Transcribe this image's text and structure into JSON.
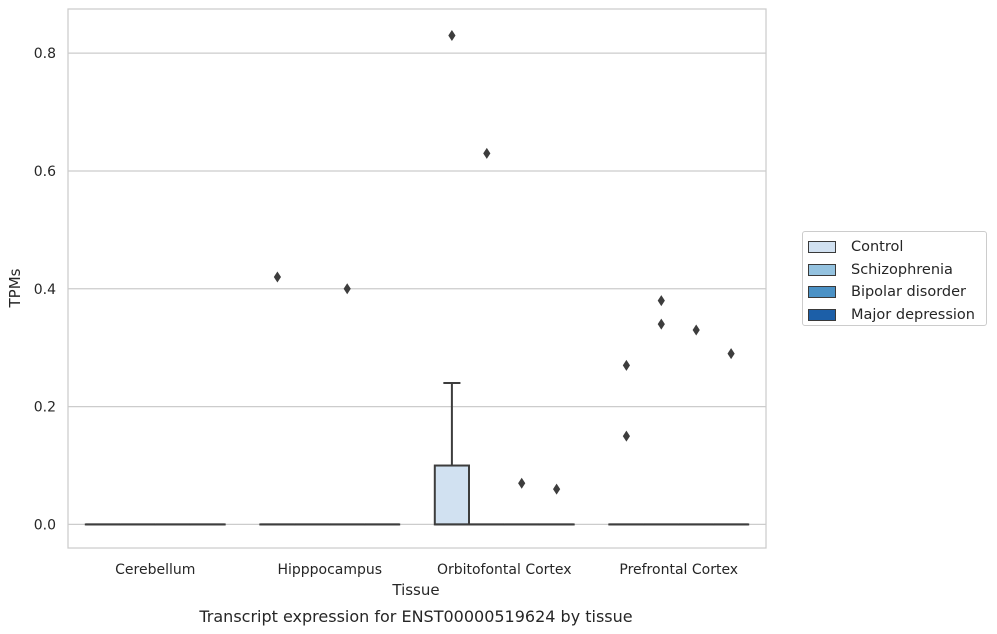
{
  "chart_data": {
    "type": "box",
    "caption": "Transcript expression for ENST00000519624 by tissue",
    "xlabel": "Tissue",
    "ylabel": "TPMs",
    "ylim": [
      -0.04,
      0.875
    ],
    "yticks": [
      {
        "value": 0.0,
        "label": "0.0"
      },
      {
        "value": 0.2,
        "label": "0.2"
      },
      {
        "value": 0.4,
        "label": "0.4"
      },
      {
        "value": 0.6,
        "label": "0.6"
      },
      {
        "value": 0.8,
        "label": "0.8"
      }
    ],
    "grid": "horizontal",
    "legend_position": "outside-right",
    "categories": [
      "Cerebellum",
      "Hipppocampus",
      "Orbitofontal Cortex",
      "Prefrontal Cortex"
    ],
    "series": [
      {
        "name": "Control",
        "color": "#d1e1f1"
      },
      {
        "name": "Schizophrenia",
        "color": "#94c2df"
      },
      {
        "name": "Bipolar disorder",
        "color": "#4a91c5"
      },
      {
        "name": "Major depression",
        "color": "#1c5fa8"
      }
    ],
    "boxes": [
      {
        "category": 0,
        "series": 0,
        "q1": 0,
        "median": 0,
        "q3": 0,
        "whisker_low": 0,
        "whisker_high": 0,
        "outliers": []
      },
      {
        "category": 0,
        "series": 1,
        "q1": 0,
        "median": 0,
        "q3": 0,
        "whisker_low": 0,
        "whisker_high": 0,
        "outliers": []
      },
      {
        "category": 0,
        "series": 2,
        "q1": 0,
        "median": 0,
        "q3": 0,
        "whisker_low": 0,
        "whisker_high": 0,
        "outliers": []
      },
      {
        "category": 0,
        "series": 3,
        "q1": 0,
        "median": 0,
        "q3": 0,
        "whisker_low": 0,
        "whisker_high": 0,
        "outliers": []
      },
      {
        "category": 1,
        "series": 0,
        "q1": 0,
        "median": 0,
        "q3": 0,
        "whisker_low": 0,
        "whisker_high": 0,
        "outliers": [
          0.42
        ]
      },
      {
        "category": 1,
        "series": 1,
        "q1": 0,
        "median": 0,
        "q3": 0,
        "whisker_low": 0,
        "whisker_high": 0,
        "outliers": []
      },
      {
        "category": 1,
        "series": 2,
        "q1": 0,
        "median": 0,
        "q3": 0,
        "whisker_low": 0,
        "whisker_high": 0,
        "outliers": [
          0.4
        ]
      },
      {
        "category": 1,
        "series": 3,
        "q1": 0,
        "median": 0,
        "q3": 0,
        "whisker_low": 0,
        "whisker_high": 0,
        "outliers": []
      },
      {
        "category": 2,
        "series": 0,
        "q1": 0,
        "median": 0,
        "q3": 0.1,
        "whisker_low": 0,
        "whisker_high": 0.24,
        "outliers": [
          0.83
        ]
      },
      {
        "category": 2,
        "series": 1,
        "q1": 0,
        "median": 0,
        "q3": 0,
        "whisker_low": 0,
        "whisker_high": 0,
        "outliers": [
          0.63
        ]
      },
      {
        "category": 2,
        "series": 2,
        "q1": 0,
        "median": 0,
        "q3": 0,
        "whisker_low": 0,
        "whisker_high": 0,
        "outliers": [
          0.07
        ]
      },
      {
        "category": 2,
        "series": 3,
        "q1": 0,
        "median": 0,
        "q3": 0,
        "whisker_low": 0,
        "whisker_high": 0,
        "outliers": [
          0.06
        ]
      },
      {
        "category": 3,
        "series": 0,
        "q1": 0,
        "median": 0,
        "q3": 0,
        "whisker_low": 0,
        "whisker_high": 0,
        "outliers": [
          0.27,
          0.15
        ]
      },
      {
        "category": 3,
        "series": 1,
        "q1": 0,
        "median": 0,
        "q3": 0,
        "whisker_low": 0,
        "whisker_high": 0,
        "outliers": [
          0.38,
          0.34
        ]
      },
      {
        "category": 3,
        "series": 2,
        "q1": 0,
        "median": 0,
        "q3": 0,
        "whisker_low": 0,
        "whisker_high": 0,
        "outliers": [
          0.33
        ]
      },
      {
        "category": 3,
        "series": 3,
        "q1": 0,
        "median": 0,
        "q3": 0,
        "whisker_low": 0,
        "whisker_high": 0,
        "outliers": [
          0.29
        ]
      }
    ]
  }
}
